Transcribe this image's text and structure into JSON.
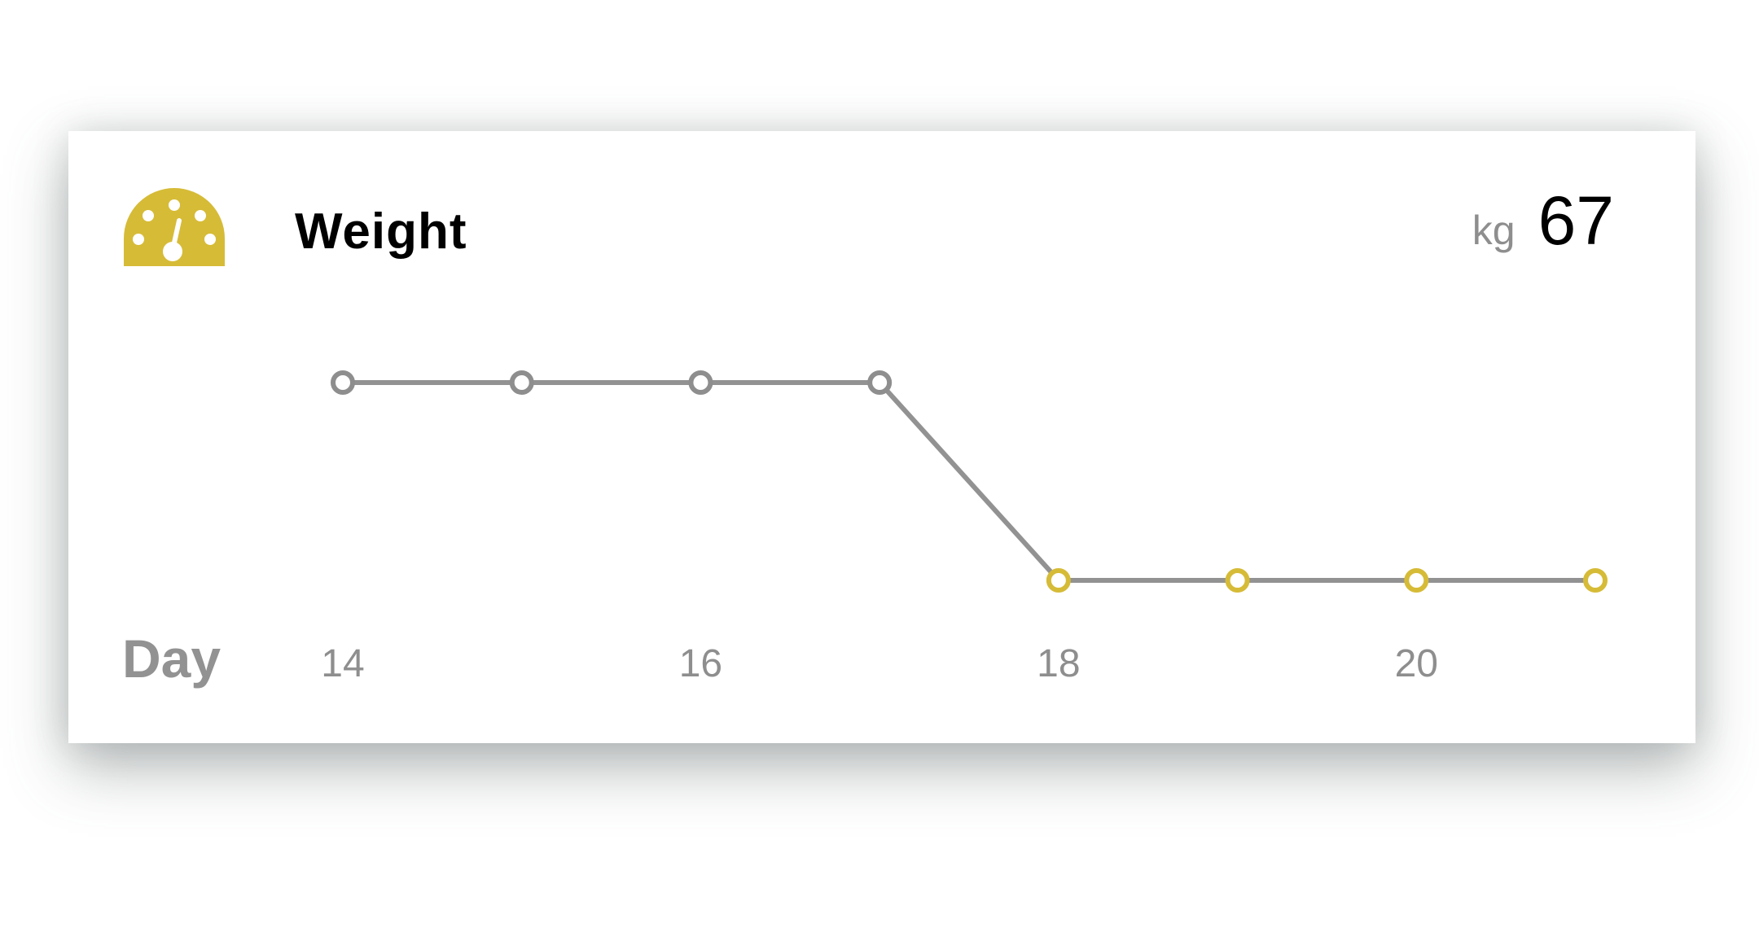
{
  "card": {
    "title": "Weight",
    "unit": "kg",
    "value": "67",
    "icon": "gauge-icon"
  },
  "colors": {
    "accent": "#D6BB37",
    "line": "#929292",
    "point_past": "#8E8E8E",
    "text": "#000000",
    "muted": "#8E8E8E"
  },
  "chart_data": {
    "type": "line",
    "xlabel": "Day",
    "ylabel": "",
    "x": [
      14,
      15,
      16,
      17,
      18,
      19,
      20,
      21
    ],
    "x_tick_labels": [
      "14",
      "16",
      "18",
      "20"
    ],
    "x_ticks": [
      14,
      16,
      18,
      20
    ],
    "xlim": [
      14,
      21
    ],
    "series": [
      {
        "values": [
          68,
          68,
          68,
          68,
          67,
          67,
          67,
          67
        ],
        "highlight_from_x": 18
      }
    ],
    "ylim": [
      67,
      68
    ],
    "grid": false
  }
}
